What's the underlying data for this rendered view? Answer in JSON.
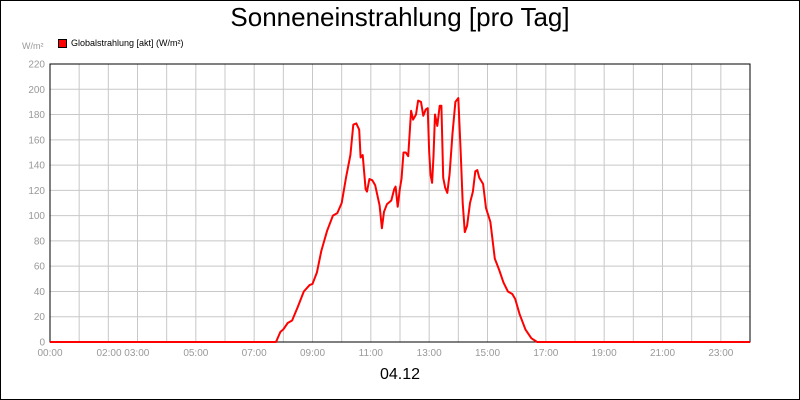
{
  "chart_data": {
    "type": "line",
    "title": "Sonneneinstrahlung [pro Tag]",
    "ylabel": "W/m²",
    "xlabel": "04.12",
    "ylim": [
      0,
      220
    ],
    "y_ticks": [
      0,
      20,
      40,
      60,
      80,
      100,
      120,
      140,
      160,
      180,
      200,
      220
    ],
    "x_range_hours": [
      0,
      24
    ],
    "x_ticks": [
      {
        "h": 0,
        "label": "00:00"
      },
      {
        "h": 2.5,
        "label": "02:00 03:00"
      },
      {
        "h": 5,
        "label": "05:00"
      },
      {
        "h": 7,
        "label": "07:00"
      },
      {
        "h": 9,
        "label": "09:00"
      },
      {
        "h": 11,
        "label": "11:00"
      },
      {
        "h": 13,
        "label": "13:00"
      },
      {
        "h": 15,
        "label": "15:00"
      },
      {
        "h": 17,
        "label": "17:00"
      },
      {
        "h": 19,
        "label": "19:00"
      },
      {
        "h": 21,
        "label": "21:00"
      },
      {
        "h": 23,
        "label": "23:00"
      }
    ],
    "grid": true,
    "legend_position": "top-left",
    "series": [
      {
        "name": "Globalstrahlung [akt] (W/m²)",
        "color": "#ff0000",
        "points": [
          [
            0,
            0
          ],
          [
            7.75,
            0
          ],
          [
            7.9,
            8
          ],
          [
            8.0,
            10
          ],
          [
            8.15,
            15
          ],
          [
            8.3,
            17
          ],
          [
            8.5,
            28
          ],
          [
            8.7,
            40
          ],
          [
            8.9,
            45
          ],
          [
            9.0,
            46
          ],
          [
            9.15,
            55
          ],
          [
            9.3,
            72
          ],
          [
            9.5,
            88
          ],
          [
            9.7,
            100
          ],
          [
            9.85,
            102
          ],
          [
            10.0,
            110
          ],
          [
            10.15,
            130
          ],
          [
            10.3,
            148
          ],
          [
            10.4,
            172
          ],
          [
            10.5,
            173
          ],
          [
            10.6,
            168
          ],
          [
            10.65,
            146
          ],
          [
            10.72,
            148
          ],
          [
            10.82,
            121
          ],
          [
            10.87,
            119
          ],
          [
            10.95,
            129
          ],
          [
            11.05,
            128
          ],
          [
            11.15,
            124
          ],
          [
            11.3,
            108
          ],
          [
            11.38,
            90
          ],
          [
            11.45,
            103
          ],
          [
            11.55,
            109
          ],
          [
            11.7,
            112
          ],
          [
            11.8,
            121
          ],
          [
            11.85,
            123
          ],
          [
            11.92,
            107
          ],
          [
            12.0,
            122
          ],
          [
            12.05,
            129
          ],
          [
            12.12,
            150
          ],
          [
            12.2,
            150
          ],
          [
            12.28,
            147
          ],
          [
            12.38,
            183
          ],
          [
            12.45,
            176
          ],
          [
            12.55,
            180
          ],
          [
            12.62,
            191
          ],
          [
            12.72,
            190
          ],
          [
            12.8,
            179
          ],
          [
            12.88,
            184
          ],
          [
            12.95,
            185
          ],
          [
            13.0,
            150
          ],
          [
            13.05,
            132
          ],
          [
            13.1,
            126
          ],
          [
            13.15,
            147
          ],
          [
            13.2,
            180
          ],
          [
            13.28,
            171
          ],
          [
            13.36,
            187
          ],
          [
            13.42,
            187
          ],
          [
            13.48,
            130
          ],
          [
            13.55,
            122
          ],
          [
            13.62,
            118
          ],
          [
            13.7,
            133
          ],
          [
            13.8,
            165
          ],
          [
            13.9,
            190
          ],
          [
            14.0,
            193
          ],
          [
            14.08,
            150
          ],
          [
            14.15,
            110
          ],
          [
            14.22,
            87
          ],
          [
            14.3,
            92
          ],
          [
            14.4,
            110
          ],
          [
            14.5,
            119
          ],
          [
            14.58,
            135
          ],
          [
            14.65,
            136
          ],
          [
            14.72,
            130
          ],
          [
            14.85,
            125
          ],
          [
            14.95,
            106
          ],
          [
            15.1,
            95
          ],
          [
            15.25,
            66
          ],
          [
            15.4,
            57
          ],
          [
            15.55,
            47
          ],
          [
            15.7,
            40
          ],
          [
            15.85,
            38
          ],
          [
            15.95,
            34
          ],
          [
            16.1,
            22
          ],
          [
            16.3,
            10
          ],
          [
            16.5,
            3
          ],
          [
            16.7,
            0
          ],
          [
            24,
            0
          ]
        ]
      }
    ]
  }
}
